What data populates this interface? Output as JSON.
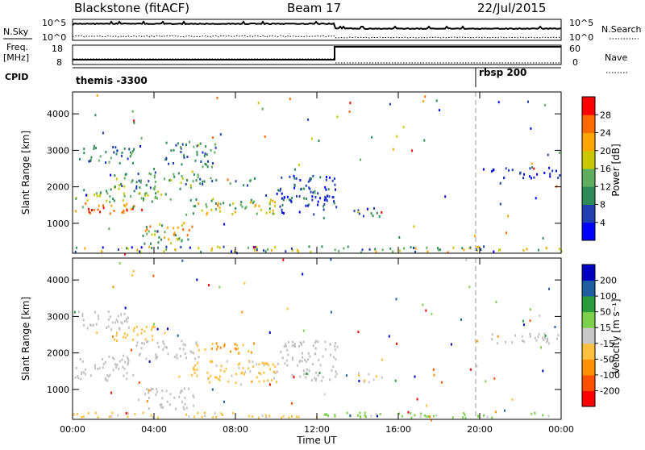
{
  "header": {
    "radar": "Blackstone (fitACF)",
    "beam": "Beam 17",
    "date": "22/Jul/2015"
  },
  "noise_panel": {
    "left_label": "N.Sky",
    "right_label": "N.Search",
    "y_ticks": [
      "10^5",
      "10^0"
    ],
    "right_ticks": [
      "10^5",
      "10^0"
    ]
  },
  "freq_panel": {
    "left_label_line1": "Freq.",
    "left_label_line2": "[MHz]",
    "right_label": "Nave",
    "y_ticks": [
      "18",
      "8"
    ],
    "right_ticks": [
      "60",
      "0"
    ]
  },
  "cpid_panel": {
    "label": "CPID",
    "segments": [
      {
        "start_hour": 0,
        "name": "themis -3300"
      },
      {
        "start_hour": 19.8,
        "name": "rbsp 200"
      }
    ]
  },
  "colors": {
    "power_scale": [
      "#0000ff",
      "#1f3fb0",
      "#2e8b57",
      "#5fae5f",
      "#c8c800",
      "#ffa500",
      "#ff6a00",
      "#ff0000"
    ],
    "velocity_scale": [
      "#ff0000",
      "#ff5000",
      "#ff9000",
      "#ffc040",
      "#c8c8c8",
      "#7cd04c",
      "#2a9a3a",
      "#1f5fa0",
      "#0000c0"
    ],
    "ground_scatter": "#c0c0c0"
  },
  "chart_data": [
    {
      "type": "heatmap",
      "panel": "power",
      "xlabel": "",
      "ylabel": "Slant Range [km]",
      "x_range_hours": [
        0,
        24
      ],
      "ylim": [
        180,
        4600
      ],
      "y_ticks": [
        "1000",
        "2000",
        "3000",
        "4000"
      ],
      "colorbar_label": "Power [dB]",
      "colorbar_ticks": [
        "4",
        "8",
        "12",
        "16",
        "20",
        "24",
        "28"
      ],
      "colorbar_range": [
        0,
        32
      ],
      "dashed_marker_hour": 19.8,
      "scatter_regions": [
        {
          "t0": 0.1,
          "t1": 3.0,
          "r0": 1200,
          "r1": 1550,
          "v0": 20,
          "v1": 31
        },
        {
          "t0": 0.1,
          "t1": 5.0,
          "r0": 1550,
          "r1": 1900,
          "v0": 8,
          "v1": 20
        },
        {
          "t0": 0.2,
          "t1": 3.0,
          "r0": 2600,
          "r1": 3100,
          "v0": 4,
          "v1": 14
        },
        {
          "t0": 2.0,
          "t1": 6.2,
          "r0": 1900,
          "r1": 2400,
          "v0": 6,
          "v1": 18
        },
        {
          "t0": 4.5,
          "t1": 7.0,
          "r0": 2500,
          "r1": 3200,
          "v0": 4,
          "v1": 14
        },
        {
          "t0": 5.5,
          "t1": 10.2,
          "r0": 1200,
          "r1": 1650,
          "v0": 8,
          "v1": 24
        },
        {
          "t0": 3.5,
          "t1": 6.0,
          "r0": 400,
          "r1": 1000,
          "v0": 8,
          "v1": 26
        },
        {
          "t0": 6.0,
          "t1": 9.0,
          "r0": 2000,
          "r1": 2200,
          "v0": 6,
          "v1": 14
        },
        {
          "t0": 10.0,
          "t1": 13.0,
          "r0": 1200,
          "r1": 2300,
          "v0": 2,
          "v1": 10
        },
        {
          "t0": 13.8,
          "t1": 15.2,
          "r0": 1150,
          "r1": 1450,
          "v0": 2,
          "v1": 12
        },
        {
          "t0": 20.5,
          "t1": 24.0,
          "r0": 2200,
          "r1": 2500,
          "v0": 2,
          "v1": 8
        },
        {
          "t0": 0.0,
          "t1": 24.0,
          "r0": 180,
          "r1": 330,
          "v0": 2,
          "v1": 24
        }
      ]
    },
    {
      "type": "heatmap",
      "panel": "velocity",
      "xlabel": "Time UT",
      "ylabel": "Slant Range [km]",
      "x_range_hours": [
        0,
        24
      ],
      "x_ticks": [
        "00:00",
        "04:00",
        "08:00",
        "12:00",
        "16:00",
        "20:00",
        "00:00"
      ],
      "ylim": [
        180,
        4600
      ],
      "y_ticks": [
        "1000",
        "2000",
        "3000",
        "4000"
      ],
      "colorbar_label": "Velocity [m s^-1]",
      "colorbar_ticks": [
        "-200",
        "-100",
        "-50",
        "-15",
        "15",
        "50",
        "100",
        "200"
      ],
      "colorbar_range": [
        -250,
        250
      ],
      "dashed_marker_hour": 19.8,
      "scatter_regions": [
        {
          "t0": 0.1,
          "t1": 3.0,
          "r0": 1200,
          "r1": 1900,
          "v0": -10,
          "v1": 10,
          "gs": true
        },
        {
          "t0": 0.2,
          "t1": 3.0,
          "r0": 2600,
          "r1": 3100,
          "v0": -10,
          "v1": 10,
          "gs": true
        },
        {
          "t0": 2.0,
          "t1": 4.5,
          "r0": 2300,
          "r1": 2700,
          "v0": -80,
          "v1": -40
        },
        {
          "t0": 3.0,
          "t1": 6.2,
          "r0": 1800,
          "r1": 2300,
          "v0": -10,
          "v1": 10,
          "gs": true
        },
        {
          "t0": 3.5,
          "t1": 6.0,
          "r0": 400,
          "r1": 1000,
          "v0": -10,
          "v1": 10,
          "gs": true
        },
        {
          "t0": 5.5,
          "t1": 10.0,
          "r0": 1100,
          "r1": 1750,
          "v0": -60,
          "v1": -20
        },
        {
          "t0": 6.0,
          "t1": 9.0,
          "r0": 1950,
          "r1": 2250,
          "v0": -120,
          "v1": -60
        },
        {
          "t0": 10.0,
          "t1": 13.0,
          "r0": 1200,
          "r1": 2300,
          "v0": -10,
          "v1": 10,
          "gs": true
        },
        {
          "t0": 13.8,
          "t1": 15.2,
          "r0": 1150,
          "r1": 1450,
          "v0": -40,
          "v1": 30
        },
        {
          "t0": 20.5,
          "t1": 24.0,
          "r0": 2200,
          "r1": 2500,
          "v0": -10,
          "v1": 10,
          "gs": true
        },
        {
          "t0": 0.0,
          "t1": 12.0,
          "r0": 180,
          "r1": 330,
          "v0": -80,
          "v1": -20
        },
        {
          "t0": 12.0,
          "t1": 24.0,
          "r0": 180,
          "r1": 330,
          "v0": 20,
          "v1": 60
        }
      ]
    }
  ]
}
